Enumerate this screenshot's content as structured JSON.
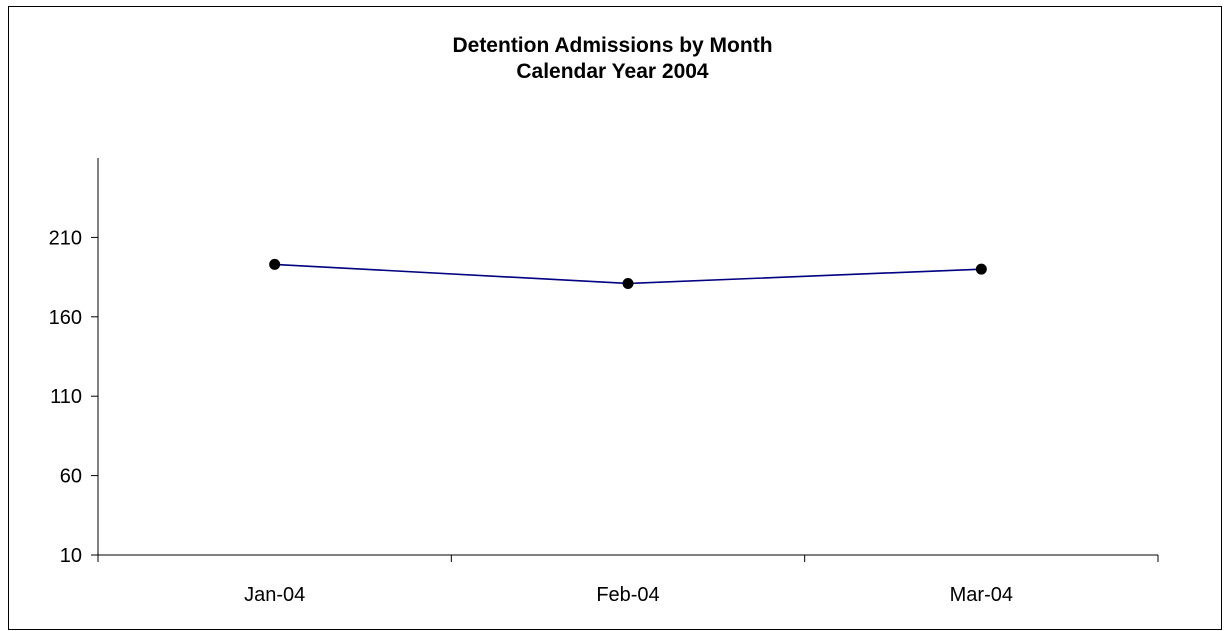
{
  "chart_data": {
    "type": "line",
    "title": "Detention Admissions by Month",
    "subtitle": "Calendar Year 2004",
    "categories": [
      "Jan-04",
      "Feb-04",
      "Mar-04"
    ],
    "series": [
      {
        "values": [
          193,
          181,
          190
        ],
        "color": "#000080",
        "marker": "circle",
        "marker_color": "#000000"
      }
    ],
    "ylim": [
      10,
      260
    ],
    "yticks": [
      10,
      60,
      110,
      160,
      210
    ],
    "grid": false,
    "xlabel": "",
    "ylabel": ""
  }
}
